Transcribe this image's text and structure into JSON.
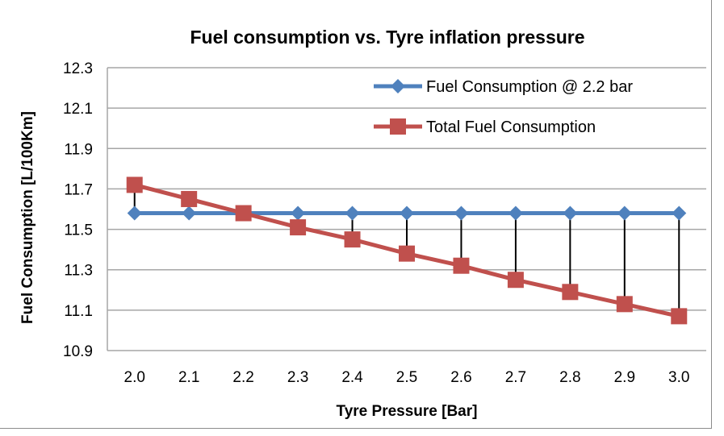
{
  "chart_data": {
    "type": "line",
    "title": "Fuel consumption vs. Tyre inflation pressure",
    "xlabel": "Tyre Pressure [Bar]",
    "ylabel": "Fuel Consumption [L/100Km]",
    "x": [
      "2.0",
      "2.1",
      "2.2",
      "2.3",
      "2.4",
      "2.5",
      "2.6",
      "2.7",
      "2.8",
      "2.9",
      "3.0"
    ],
    "ylim": [
      10.9,
      12.3
    ],
    "yticks": [
      "10.9",
      "11.1",
      "11.3",
      "11.5",
      "11.7",
      "11.9",
      "12.1",
      "12.3"
    ],
    "grid": true,
    "legend_position": "top-right",
    "high_low_lines": true,
    "series": [
      {
        "name": "Fuel Consumption @ 2.2 bar",
        "color": "#4f81bd",
        "marker": "diamond",
        "values": [
          11.58,
          11.58,
          11.58,
          11.58,
          11.58,
          11.58,
          11.58,
          11.58,
          11.58,
          11.58,
          11.58
        ]
      },
      {
        "name": "Total Fuel Consumption",
        "color": "#c0504d",
        "marker": "square",
        "values": [
          11.72,
          11.65,
          11.58,
          11.51,
          11.45,
          11.38,
          11.32,
          11.25,
          11.19,
          11.13,
          11.07
        ]
      }
    ]
  }
}
